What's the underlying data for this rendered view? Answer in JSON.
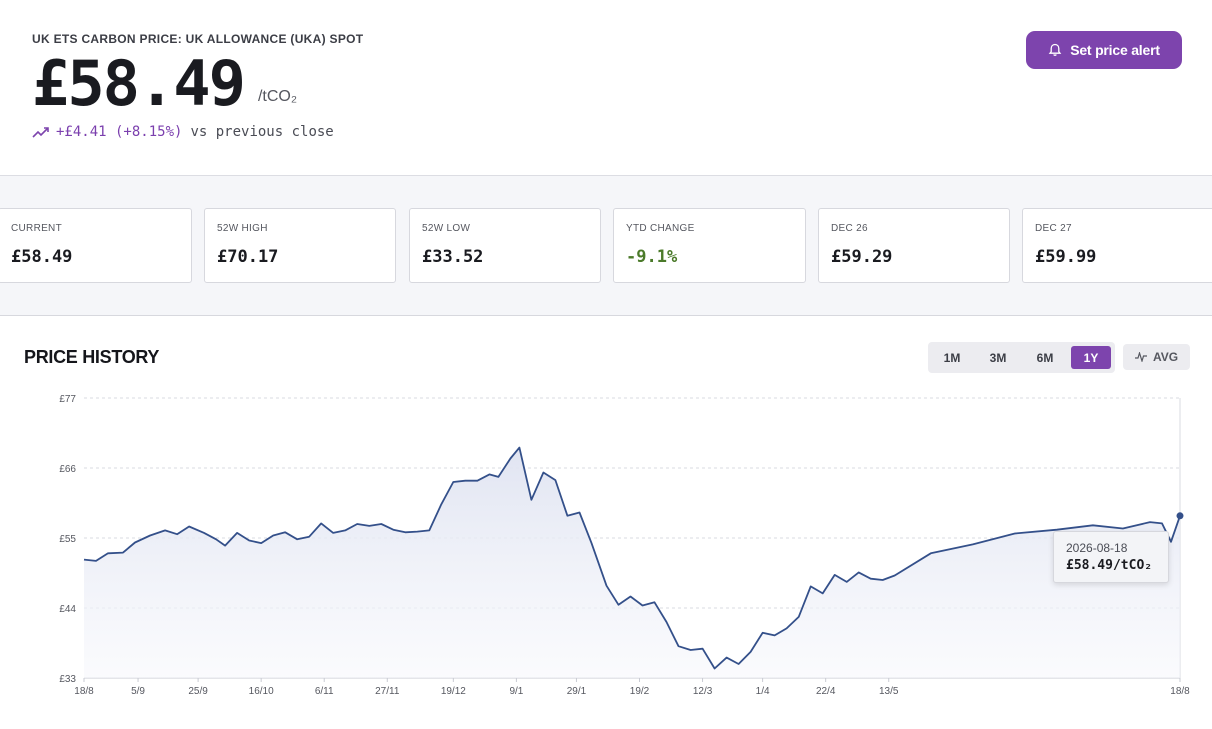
{
  "header": {
    "title": "UK ETS CARBON PRICE: UK ALLOWANCE (UKA) SPOT",
    "price": "£58.49",
    "unit": "/tCO₂",
    "change": "+£4.41 (+8.15%)",
    "change_suffix": "vs previous close",
    "alert_label": "Set price alert"
  },
  "stats": [
    {
      "label": "CURRENT",
      "value": "£58.49"
    },
    {
      "label": "52W HIGH",
      "value": "£70.17"
    },
    {
      "label": "52W LOW",
      "value": "£33.52"
    },
    {
      "label": "YTD CHANGE",
      "value": "-9.1%"
    },
    {
      "label": "DEC 26",
      "value": "£59.29"
    },
    {
      "label": "DEC 27",
      "value": "£59.99"
    }
  ],
  "chart_section": {
    "title": "PRICE HISTORY",
    "ranges": [
      "1M",
      "3M",
      "6M",
      "1Y"
    ],
    "active_range": "1Y",
    "avg_label": "AVG"
  },
  "tooltip": {
    "date": "2026-08-18",
    "value": "£58.49/tCO₂"
  },
  "colors": {
    "accent": "#7d44ad",
    "line": "#34508a",
    "positive": "#4b7a2a"
  },
  "chart_data": {
    "type": "line",
    "title": "",
    "xlabel": "",
    "ylabel": "",
    "ylim": [
      33,
      77
    ],
    "y_ticks": [
      "£77",
      "£66",
      "£55",
      "£44",
      "£33"
    ],
    "y_tick_values": [
      77,
      66,
      55,
      44,
      33
    ],
    "x_tick_labels": [
      "18/8",
      "5/9",
      "25/9",
      "16/10",
      "6/11",
      "27/11",
      "19/12",
      "9/1",
      "29/1",
      "19/2",
      "12/3",
      "1/4",
      "22/4",
      "13/5",
      "18/8"
    ],
    "x_tick_dates": [
      "2025-08-18",
      "2025-09-05",
      "2025-09-25",
      "2025-10-16",
      "2025-11-06",
      "2025-11-27",
      "2025-12-19",
      "2026-01-09",
      "2026-01-29",
      "2026-02-19",
      "2026-03-12",
      "2026-04-01",
      "2026-04-22",
      "2026-05-13",
      "2026-08-18"
    ],
    "grid": true,
    "series": [
      {
        "points": [
          [
            "2025-08-18",
            51.6
          ],
          [
            "2025-08-22",
            51.4
          ],
          [
            "2025-08-26",
            52.6
          ],
          [
            "2025-08-31",
            52.7
          ],
          [
            "2025-09-04",
            54.3
          ],
          [
            "2025-09-09",
            55.4
          ],
          [
            "2025-09-14",
            56.2
          ],
          [
            "2025-09-18",
            55.6
          ],
          [
            "2025-09-22",
            56.8
          ],
          [
            "2025-09-27",
            55.8
          ],
          [
            "2025-10-01",
            54.8
          ],
          [
            "2025-10-04",
            53.8
          ],
          [
            "2025-10-08",
            55.8
          ],
          [
            "2025-10-12",
            54.6
          ],
          [
            "2025-10-16",
            54.2
          ],
          [
            "2025-10-20",
            55.4
          ],
          [
            "2025-10-24",
            55.9
          ],
          [
            "2025-10-28",
            54.8
          ],
          [
            "2025-11-01",
            55.2
          ],
          [
            "2025-11-05",
            57.3
          ],
          [
            "2025-11-09",
            55.8
          ],
          [
            "2025-11-13",
            56.2
          ],
          [
            "2025-11-17",
            57.2
          ],
          [
            "2025-11-21",
            56.9
          ],
          [
            "2025-11-25",
            57.2
          ],
          [
            "2025-11-29",
            56.3
          ],
          [
            "2025-12-03",
            55.9
          ],
          [
            "2025-12-07",
            56.0
          ],
          [
            "2025-12-11",
            56.2
          ],
          [
            "2025-12-15",
            60.3
          ],
          [
            "2025-12-19",
            63.8
          ],
          [
            "2025-12-23",
            64.0
          ],
          [
            "2025-12-27",
            64.0
          ],
          [
            "2025-12-31",
            65.0
          ],
          [
            "2026-01-03",
            64.6
          ],
          [
            "2026-01-07",
            67.5
          ],
          [
            "2026-01-10",
            69.2
          ],
          [
            "2026-01-14",
            61.0
          ],
          [
            "2026-01-18",
            65.3
          ],
          [
            "2026-01-22",
            64.1
          ],
          [
            "2026-01-26",
            58.5
          ],
          [
            "2026-01-30",
            59.0
          ],
          [
            "2026-02-03",
            54.2
          ],
          [
            "2026-02-08",
            47.5
          ],
          [
            "2026-02-12",
            44.5
          ],
          [
            "2026-02-16",
            45.8
          ],
          [
            "2026-02-20",
            44.4
          ],
          [
            "2026-02-24",
            44.9
          ],
          [
            "2026-02-28",
            41.8
          ],
          [
            "2026-03-04",
            38.0
          ],
          [
            "2026-03-08",
            37.4
          ],
          [
            "2026-03-12",
            37.6
          ],
          [
            "2026-03-16",
            34.5
          ],
          [
            "2026-03-20",
            36.2
          ],
          [
            "2026-03-24",
            35.2
          ],
          [
            "2026-03-28",
            37.1
          ],
          [
            "2026-04-01",
            40.1
          ],
          [
            "2026-04-05",
            39.7
          ],
          [
            "2026-04-09",
            40.8
          ],
          [
            "2026-04-13",
            42.6
          ],
          [
            "2026-04-17",
            47.4
          ],
          [
            "2026-04-21",
            46.3
          ],
          [
            "2026-04-25",
            49.2
          ],
          [
            "2026-04-29",
            48.1
          ],
          [
            "2026-05-03",
            49.6
          ],
          [
            "2026-05-07",
            48.6
          ],
          [
            "2026-05-11",
            48.4
          ],
          [
            "2026-05-15",
            49.1
          ],
          [
            "2026-05-27",
            52.6
          ],
          [
            "2026-06-10",
            54.0
          ],
          [
            "2026-06-24",
            55.7
          ],
          [
            "2026-07-08",
            56.3
          ],
          [
            "2026-07-20",
            57.0
          ],
          [
            "2026-07-30",
            56.5
          ],
          [
            "2026-08-08",
            57.5
          ],
          [
            "2026-08-12",
            57.3
          ],
          [
            "2026-08-15",
            54.4
          ],
          [
            "2026-08-18",
            58.49
          ]
        ]
      }
    ]
  }
}
